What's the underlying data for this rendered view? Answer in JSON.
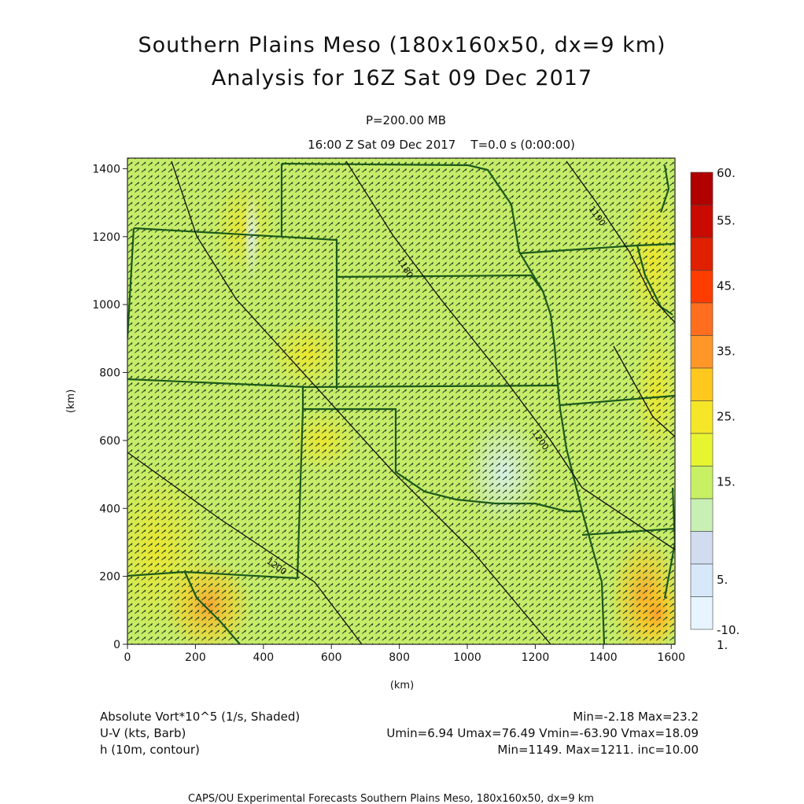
{
  "title_line1": "Southern Plains Meso (180x160x50, dx=9 km)",
  "title_line2": "Analysis for 16Z Sat 09 Dec 2017",
  "level_label": "P=200.00 MB",
  "valid_time": "16:00 Z Sat 09 Dec 2017    T=0.0 s (0:00:00)",
  "axes": {
    "x_unit": "(km)",
    "y_unit": "(km)",
    "x_ticks": [
      "0",
      "200",
      "400",
      "600",
      "800",
      "1000",
      "1200",
      "1400",
      "1600"
    ],
    "y_ticks": [
      "0",
      "200",
      "400",
      "600",
      "800",
      "1000",
      "1200",
      "1400"
    ],
    "x_range": [
      0,
      1611
    ],
    "y_range": [
      0,
      1431
    ]
  },
  "colorbar": {
    "labels": [
      "60.",
      "55.",
      "45.",
      "35.",
      "25.",
      "15.",
      "5.",
      "1.",
      "-10."
    ],
    "colors_top_to_bottom": [
      "#b00000",
      "#c80a00",
      "#e02000",
      "#ff3c00",
      "#ff6e1e",
      "#ff9628",
      "#ffc81e",
      "#f5e628",
      "#e6f530",
      "#c8f064",
      "#c8f0b4",
      "#d2dcf0",
      "#d7e8fa",
      "#e6f5ff"
    ]
  },
  "contours": {
    "labels": [
      "1180",
      "1190",
      "1200",
      "1200"
    ]
  },
  "legend": {
    "field1": "Absolute Vort*10^5 (1/s, Shaded)",
    "field1_stats": "Min=-2.18 Max=23.2",
    "field2": "U-V (kts, Barb)",
    "field2_stats": "Umin=6.94 Umax=76.49 Vmin=-63.90 Vmax=18.09",
    "field3": "h (10m, contour)",
    "field3_stats": "Min=1149. Max=1211. inc=10.00"
  },
  "footer": "CAPS/OU Experimental Forecasts  Southern Plains Meso, 180x160x50, dx=9 km"
}
